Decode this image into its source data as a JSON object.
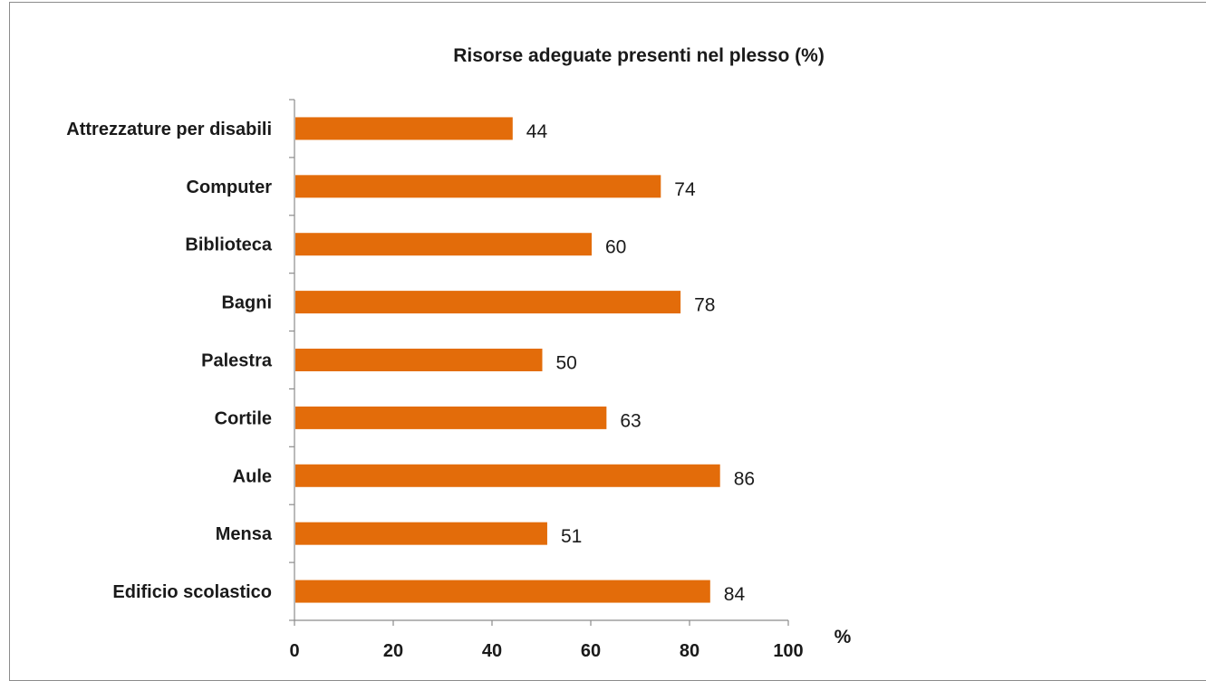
{
  "chart_data": {
    "type": "bar",
    "orientation": "horizontal",
    "title": "Risorse adeguate presenti nel plesso  (%)",
    "xlabel": "%",
    "ylabel": "",
    "categories": [
      "Attrezzature per disabili",
      "Computer",
      "Biblioteca",
      "Bagni",
      "Palestra",
      "Cortile",
      "Aule",
      "Mensa",
      "Edificio scolastico"
    ],
    "values": [
      44,
      74,
      60,
      78,
      50,
      63,
      86,
      51,
      84
    ],
    "xlim": [
      0,
      100
    ],
    "xticks": [
      "0",
      "20",
      "40",
      "60",
      "80",
      "100"
    ],
    "grid": false,
    "legend": "none",
    "bar_color": "#e36c0a"
  }
}
